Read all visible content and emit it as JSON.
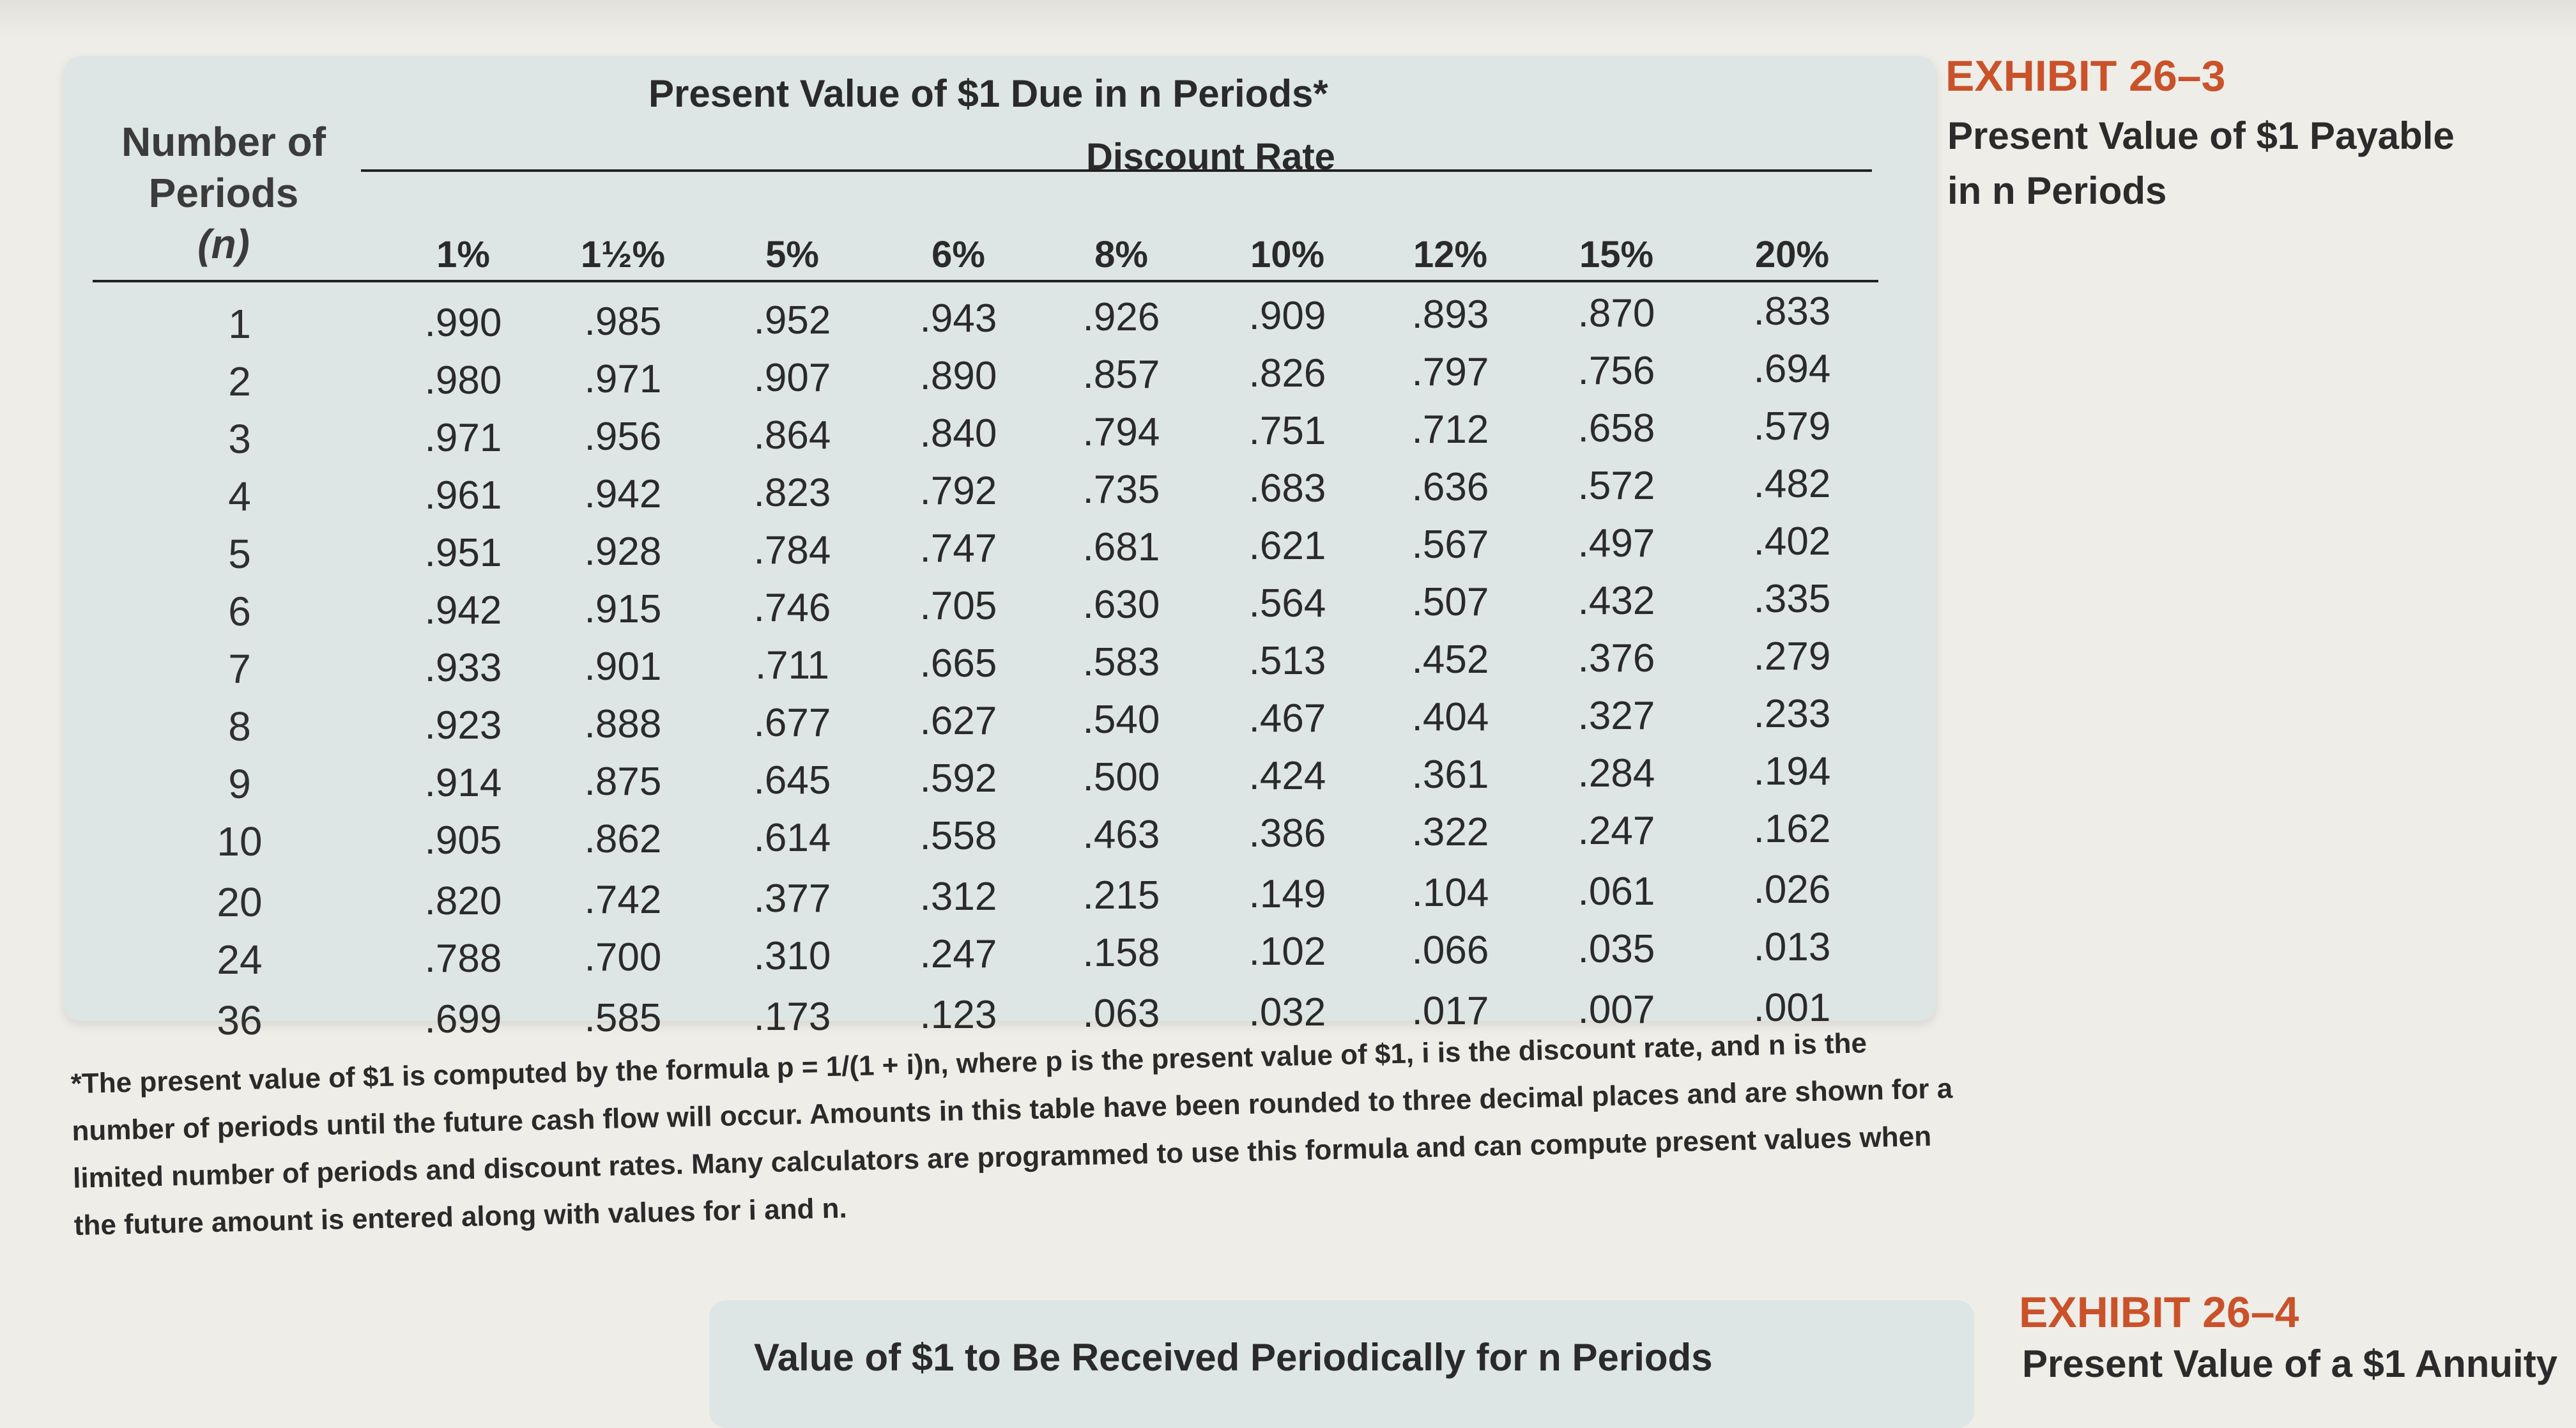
{
  "table": {
    "title": "Present Value of $1 Due in n Periods*",
    "subtitle": "Discount Rate",
    "row_header": [
      "Number of",
      "Periods",
      "(n)"
    ],
    "rates": [
      "1%",
      "1½%",
      "5%",
      "6%",
      "8%",
      "10%",
      "12%",
      "15%",
      "20%"
    ],
    "periods": [
      "1",
      "2",
      "3",
      "4",
      "5",
      "6",
      "7",
      "8",
      "9",
      "10",
      "20",
      "24",
      "36"
    ],
    "rows": [
      [
        ".990",
        ".985",
        ".952",
        ".943",
        ".926",
        ".909",
        ".893",
        ".870",
        ".833"
      ],
      [
        ".980",
        ".971",
        ".907",
        ".890",
        ".857",
        ".826",
        ".797",
        ".756",
        ".694"
      ],
      [
        ".971",
        ".956",
        ".864",
        ".840",
        ".794",
        ".751",
        ".712",
        ".658",
        ".579"
      ],
      [
        ".961",
        ".942",
        ".823",
        ".792",
        ".735",
        ".683",
        ".636",
        ".572",
        ".482"
      ],
      [
        ".951",
        ".928",
        ".784",
        ".747",
        ".681",
        ".621",
        ".567",
        ".497",
        ".402"
      ],
      [
        ".942",
        ".915",
        ".746",
        ".705",
        ".630",
        ".564",
        ".507",
        ".432",
        ".335"
      ],
      [
        ".933",
        ".901",
        ".711",
        ".665",
        ".583",
        ".513",
        ".452",
        ".376",
        ".279"
      ],
      [
        ".923",
        ".888",
        ".677",
        ".627",
        ".540",
        ".467",
        ".404",
        ".327",
        ".233"
      ],
      [
        ".914",
        ".875",
        ".645",
        ".592",
        ".500",
        ".424",
        ".361",
        ".284",
        ".194"
      ],
      [
        ".905",
        ".862",
        ".614",
        ".558",
        ".463",
        ".386",
        ".322",
        ".247",
        ".162"
      ],
      [
        ".820",
        ".742",
        ".377",
        ".312",
        ".215",
        ".149",
        ".104",
        ".061",
        ".026"
      ],
      [
        ".788",
        ".700",
        ".310",
        ".247",
        ".158",
        ".102",
        ".066",
        ".035",
        ".013"
      ],
      [
        ".699",
        ".585",
        ".173",
        ".123",
        ".063",
        ".032",
        ".017",
        ".007",
        ".001"
      ]
    ]
  },
  "exhibit": {
    "number": "EXHIBIT 26–3",
    "title_line1": "Present Value of $1 Payable",
    "title_line2": "in n Periods"
  },
  "footnote": "*The present value of $1 is computed by the formula p = 1/(1 + i)n, where p is the present value of $1, i is the discount rate, and n is the number of periods until the future cash flow will occur. Amounts in this table have been rounded to three decimal places and are shown for a limited number of periods and discount rates. Many calculators are programmed to use this formula and can compute present values when the future amount is entered along with values for i and n.",
  "next_table_title": "Value of $1 to Be Received Periodically for n Periods",
  "next_exhibit": {
    "number": "EXHIBIT 26–4",
    "title": "Present Value of a $1 Annuity"
  },
  "colors": {
    "accent": "#c9522a",
    "panel": "#dde6e4",
    "page": "#efede8"
  }
}
